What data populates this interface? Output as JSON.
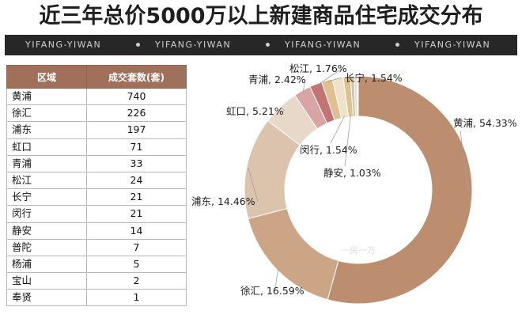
{
  "title": "近三年总价5000万以上新建商品住宅成交分布",
  "banner": {
    "items": [
      "YIFANG-YIWAN",
      "YIFANG-YIWAN",
      "YIFANG-YIWAN",
      "YIFANG-YIWAN"
    ]
  },
  "table": {
    "headers": [
      "区域",
      "成交套数(套)"
    ],
    "rows": [
      [
        "黄浦",
        "740"
      ],
      [
        "徐汇",
        "226"
      ],
      [
        "浦东",
        "197"
      ],
      [
        "虹口",
        "71"
      ],
      [
        "青浦",
        "33"
      ],
      [
        "松江",
        "24"
      ],
      [
        "长宁",
        "21"
      ],
      [
        "闵行",
        "21"
      ],
      [
        "静安",
        "14"
      ],
      [
        "普陀",
        "7"
      ],
      [
        "杨浦",
        "5"
      ],
      [
        "宝山",
        "2"
      ],
      [
        "奉贤",
        "1"
      ]
    ]
  },
  "watermark": "一房一万",
  "chart_data": {
    "type": "pie",
    "categories": [
      "黄浦",
      "徐汇",
      "浦东",
      "虹口",
      "青浦",
      "松江",
      "长宁",
      "闵行",
      "静安",
      "普陀",
      "杨浦",
      "宝山",
      "奉贤"
    ],
    "values": [
      54.33,
      16.59,
      14.46,
      5.21,
      2.42,
      1.76,
      1.54,
      1.54,
      1.03,
      0.51,
      0.37,
      0.15,
      0.07
    ],
    "labels": [
      {
        "category": "黄浦",
        "text": "黄浦, 54.33%"
      },
      {
        "category": "徐汇",
        "text": "徐汇, 16.59%"
      },
      {
        "category": "浦东",
        "text": "浦东, 14.46%"
      },
      {
        "category": "虹口",
        "text": "虹口, 5.21%"
      },
      {
        "category": "青浦",
        "text": "青浦, 2.42%"
      },
      {
        "category": "松江",
        "text": "松江, 1.76%"
      },
      {
        "category": "长宁",
        "text": "长宁, 1.54%"
      },
      {
        "category": "闵行",
        "text": "闵行, 1.54%"
      },
      {
        "category": "静安",
        "text": "静安, 1.03%"
      }
    ],
    "colors": [
      "#bc8d6e",
      "#cca587",
      "#dcc3ae",
      "#e8d8ca",
      "#d9a4a4",
      "#c27373",
      "#e0c090",
      "#f0e2c8",
      "#dcc28c",
      "#cfc2b0",
      "#e8d8c0",
      "#d0b8a0",
      "#f2ead8"
    ],
    "donut": true
  }
}
